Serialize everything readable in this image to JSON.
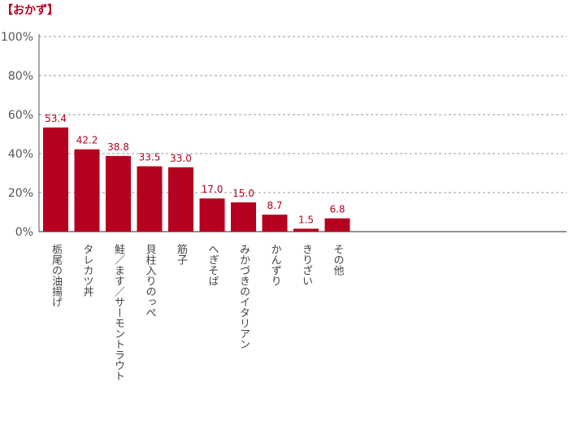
{
  "chart_title": "【おかず】",
  "chart_data": {
    "type": "bar",
    "title": "【おかず】",
    "xlabel": "",
    "ylabel": "",
    "ylim": [
      0,
      100
    ],
    "y_ticks": [
      "0%",
      "20%",
      "40%",
      "60%",
      "80%",
      "100%"
    ],
    "y_tick_values": [
      0,
      20,
      40,
      60,
      80,
      100
    ],
    "grid": true,
    "categories": [
      "栃尾の油揚げ",
      "タレカツ丼",
      "鮭／ます／サーモントラウト",
      "貝柱入りのっぺ",
      "筋子",
      "へぎそば",
      "みかづきのイタリアン",
      "かんずり",
      "きりざい",
      "その他"
    ],
    "values": [
      53.4,
      42.2,
      38.8,
      33.5,
      33.0,
      17.0,
      15.0,
      8.7,
      1.5,
      6.8
    ],
    "data_labels": [
      "53.4",
      "42.2",
      "38.8",
      "33.5",
      "33.0",
      "17.0",
      "15.0",
      "8.7",
      "1.5",
      "6.8"
    ],
    "colors": {
      "bar": "#b5001f",
      "label": "#b5001f",
      "grid": "#999999",
      "axis": "#555555",
      "text": "#444444"
    }
  }
}
